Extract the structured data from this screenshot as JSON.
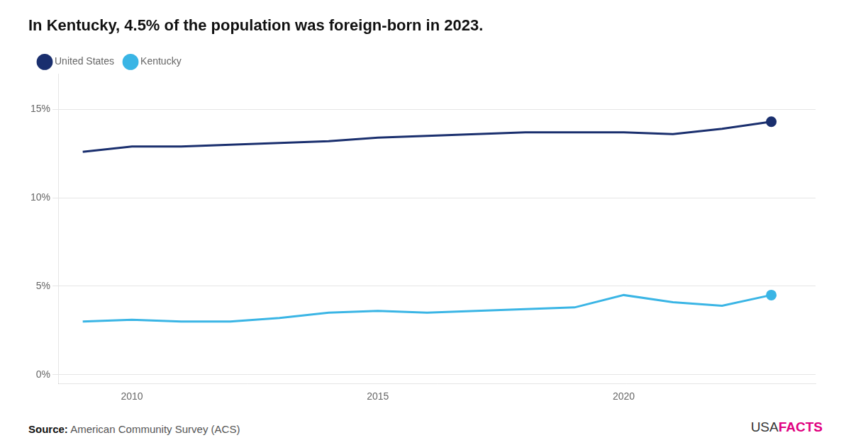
{
  "chart_data": {
    "type": "line",
    "title": "In Kentucky, 4.5% of the population was foreign-born in 2023.",
    "x": [
      2009,
      2010,
      2011,
      2012,
      2013,
      2014,
      2015,
      2016,
      2017,
      2018,
      2019,
      2020,
      2021,
      2022,
      2023
    ],
    "series": [
      {
        "name": "United States",
        "color": "#1a2f6e",
        "values": [
          12.6,
          12.9,
          12.9,
          13.0,
          13.1,
          13.2,
          13.4,
          13.5,
          13.6,
          13.7,
          13.7,
          13.7,
          13.6,
          13.9,
          14.3
        ]
      },
      {
        "name": "Kentucky",
        "color": "#3ab5e5",
        "values": [
          3.0,
          3.1,
          3.0,
          3.0,
          3.2,
          3.5,
          3.6,
          3.5,
          3.6,
          3.7,
          3.8,
          4.5,
          4.1,
          3.9,
          4.5
        ]
      }
    ],
    "xlim": [
      2008.5,
      2023.9
    ],
    "xticks": [
      2010,
      2015,
      2020
    ],
    "ylim": [
      -0.5,
      17
    ],
    "yticks": [
      {
        "value": 0,
        "label": "0%"
      },
      {
        "value": 5,
        "label": "5%"
      },
      {
        "value": 10,
        "label": "10%"
      },
      {
        "value": 15,
        "label": "15%"
      }
    ],
    "grid": "y",
    "legend": "upper left",
    "annotations": [
      {
        "text": "Source:"
      },
      {
        "text": "American Community Survey (ACS)"
      },
      {
        "text": "USA",
        "color": "#333333"
      },
      {
        "text": "FACTS",
        "color": "#e0007f"
      }
    ]
  }
}
